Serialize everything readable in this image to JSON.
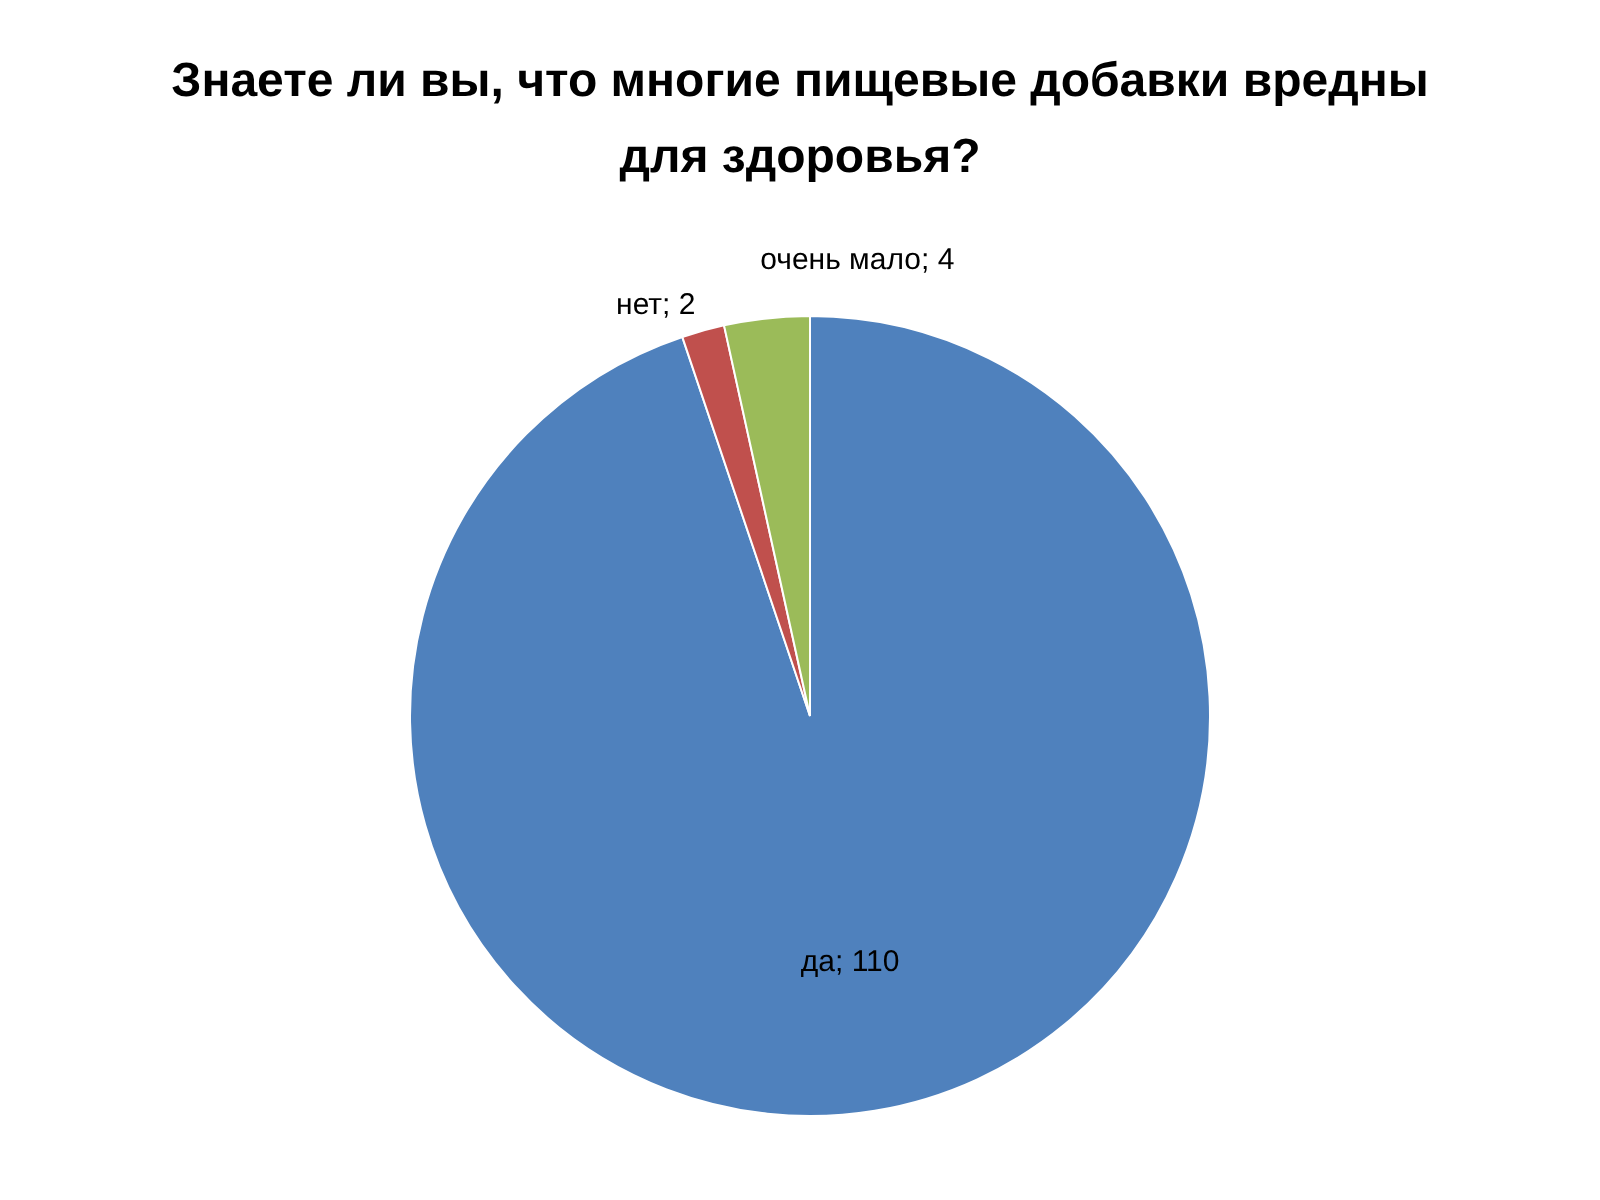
{
  "chart_data": {
    "type": "pie",
    "title": "Знаете ли вы, что многие пищевые добавки вредны для здоровья?",
    "categories": [
      "да",
      "нет",
      "очень мало"
    ],
    "values": [
      110,
      2,
      4
    ],
    "colors": [
      "#4f81bd",
      "#c0504d",
      "#9bbb59"
    ],
    "value_labels": [
      "; 110",
      "; 2",
      "; 4"
    ]
  }
}
